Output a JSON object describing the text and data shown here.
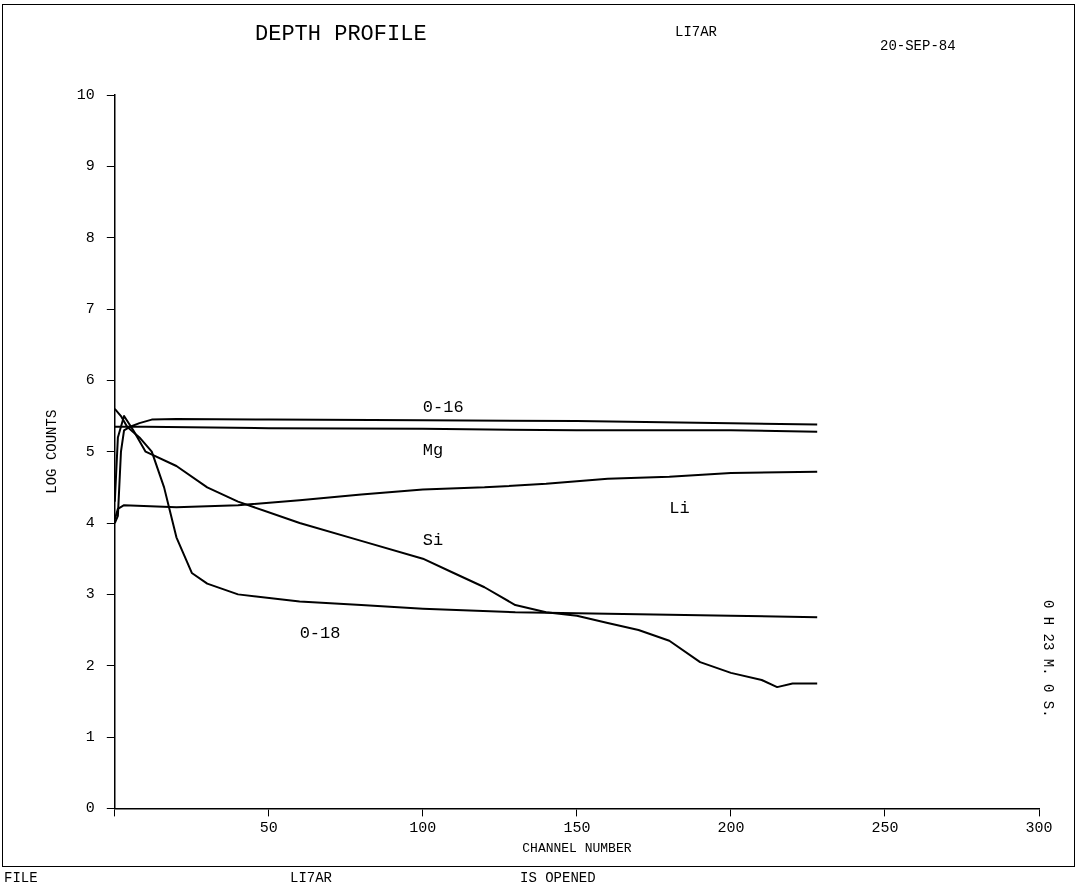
{
  "chart_data": {
    "type": "line",
    "title": "DEPTH PROFILE",
    "subtitle": "LI7AR",
    "xlabel": "CHANNEL NUMBER",
    "ylabel": "LOG COUNTS",
    "annotations": [
      "20-SEP-84",
      "0 H 23 M. 0 S.",
      "FILE",
      "LI7AR",
      "IS OPENED"
    ],
    "xlim": [
      0,
      300
    ],
    "xticks": [
      {
        "value": 0,
        "label": null
      },
      50,
      100,
      150,
      200,
      250,
      300
    ],
    "ylim": [
      0,
      10
    ],
    "yticks": [
      0,
      1,
      2,
      3,
      4,
      5,
      6,
      7,
      8,
      9,
      10
    ],
    "grid": false,
    "legend": false,
    "marker": "none",
    "line_style": "solid",
    "series": [
      {
        "name": "0-16",
        "color": "#000000",
        "x": [
          0,
          1,
          2,
          3,
          5,
          8,
          12,
          20,
          50,
          100,
          150,
          200,
          228
        ],
        "values": [
          4.0,
          4.1,
          5.0,
          5.3,
          5.35,
          5.4,
          5.45,
          5.46,
          5.45,
          5.44,
          5.43,
          5.4,
          5.38
        ]
      },
      {
        "name": "Mg",
        "color": "#000000",
        "x": [
          0,
          10,
          50,
          100,
          150,
          200,
          228
        ],
        "values": [
          5.35,
          5.35,
          5.33,
          5.32,
          5.3,
          5.3,
          5.28
        ]
      },
      {
        "name": "Li",
        "color": "#000000",
        "x": [
          0,
          1,
          3,
          20,
          40,
          60,
          80,
          100,
          120,
          140,
          160,
          180,
          200,
          228
        ],
        "values": [
          4.05,
          4.2,
          4.25,
          4.22,
          4.25,
          4.32,
          4.4,
          4.47,
          4.5,
          4.55,
          4.62,
          4.65,
          4.7,
          4.72
        ]
      },
      {
        "name": "Si",
        "color": "#000000",
        "x": [
          0,
          1,
          3,
          6,
          10,
          20,
          30,
          40,
          60,
          80,
          100,
          110,
          120,
          130,
          140,
          150,
          160,
          170,
          180,
          190,
          200,
          210,
          215,
          220,
          228
        ],
        "values": [
          4.3,
          5.2,
          5.5,
          5.3,
          5.0,
          4.8,
          4.5,
          4.3,
          4.0,
          3.75,
          3.5,
          3.3,
          3.1,
          2.85,
          2.75,
          2.7,
          2.6,
          2.5,
          2.35,
          2.05,
          1.9,
          1.8,
          1.7,
          1.75,
          1.75
        ]
      },
      {
        "name": "0-18",
        "color": "#000000",
        "x": [
          0,
          2,
          4,
          8,
          12,
          16,
          20,
          25,
          30,
          40,
          60,
          80,
          100,
          130,
          160,
          200,
          228
        ],
        "values": [
          5.6,
          5.5,
          5.35,
          5.2,
          5.0,
          4.5,
          3.8,
          3.3,
          3.15,
          3.0,
          2.9,
          2.85,
          2.8,
          2.75,
          2.73,
          2.7,
          2.68
        ]
      }
    ]
  }
}
